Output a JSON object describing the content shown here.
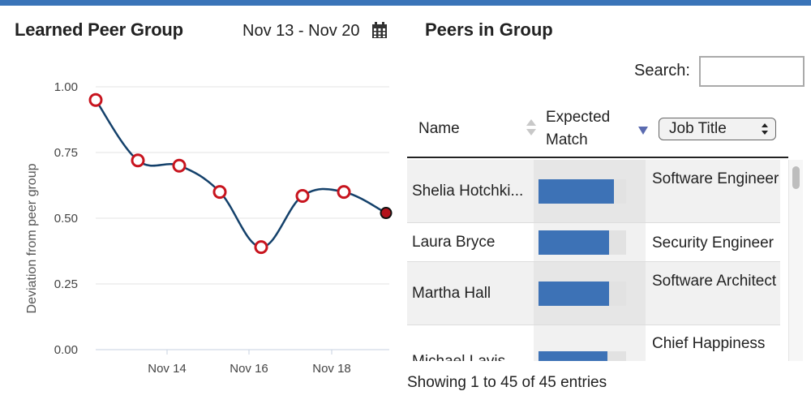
{
  "left": {
    "title": "Learned Peer Group",
    "date_range": "Nov 13 - Nov 20",
    "calendar_icon": "calendar-icon"
  },
  "chart_data": {
    "type": "line",
    "ylabel": "Deviation from peer group",
    "xlabel": "",
    "ylim": [
      0,
      1
    ],
    "yticks": [
      "0.00",
      "0.25",
      "0.50",
      "0.75",
      "1.00"
    ],
    "xticks": [
      "Nov 14",
      "Nov 16",
      "Nov 18"
    ],
    "x": [
      "Nov 13",
      "Nov 14",
      "Nov 15",
      "Nov 16",
      "Nov 17",
      "Nov 18",
      "Nov 19",
      "Nov 20"
    ],
    "values": [
      0.95,
      0.72,
      0.7,
      0.6,
      0.39,
      0.585,
      0.6,
      0.52
    ],
    "grid": true,
    "colors": {
      "line": "#14416b",
      "marker_stroke": "#c8141e",
      "last_marker_fill": "#b3121b"
    }
  },
  "right": {
    "title": "Peers in Group",
    "search_label": "Search:",
    "search_value": "",
    "columns": {
      "name": "Name",
      "match": "Expected Match",
      "job_title": "Job Title"
    },
    "rows": [
      {
        "name": "Shelia Hotchki...",
        "match": 0.86,
        "job_title": "Software Engineer"
      },
      {
        "name": "Laura Bryce",
        "match": 0.81,
        "job_title": "Security Engineer"
      },
      {
        "name": "Martha Hall",
        "match": 0.81,
        "job_title": "Software Architect"
      },
      {
        "name": "Michael Lavis",
        "match": 0.79,
        "job_title": "Chief Happiness"
      }
    ],
    "footer": "Showing 1 to 45 of 45 entries"
  },
  "colors": {
    "accent": "#3a74b8",
    "bar": "#3d72b6"
  }
}
